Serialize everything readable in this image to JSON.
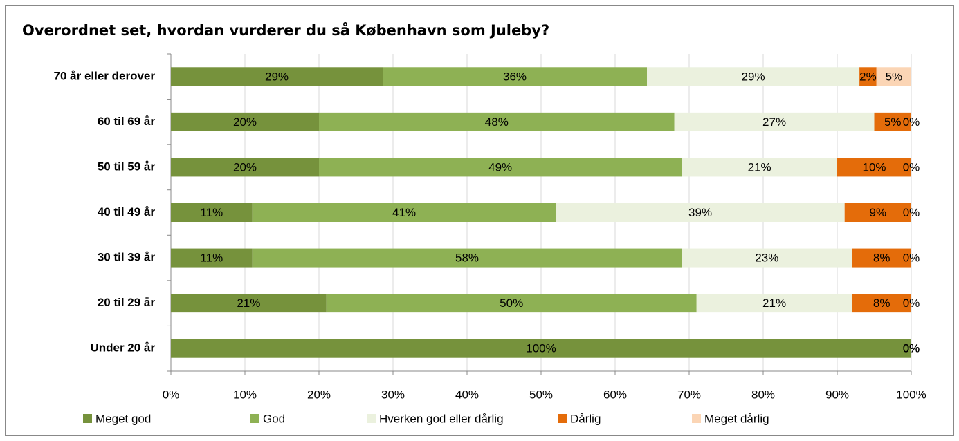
{
  "chart_data": {
    "type": "bar",
    "orientation": "horizontal",
    "stacked": true,
    "title": "Overordnet set, hvordan vurderer du så København som Juleby?",
    "categories": [
      "70 år eller derover",
      "60 til 69 år",
      "50 til 59 år",
      "40 til 49 år",
      "30 til 39 år",
      "20 til 29 år",
      "Under 20 år"
    ],
    "series": [
      {
        "name": "Meget god",
        "color": "#76923c",
        "values": [
          28.6,
          20,
          20,
          11,
          11,
          21,
          100
        ],
        "value_labels": [
          "29%",
          "20%",
          "20%",
          "11%",
          "11%",
          "21%",
          "100%"
        ]
      },
      {
        "name": "God",
        "color": "#8eb154",
        "values": [
          35.7,
          48,
          49,
          41,
          58,
          50,
          0
        ],
        "value_labels": [
          "36%",
          "48%",
          "49%",
          "41%",
          "58%",
          "50%",
          "0%"
        ]
      },
      {
        "name": "Hverken god eller dårlig",
        "color": "#ebf1de",
        "values": [
          28.7,
          27,
          21,
          39,
          23,
          21,
          0
        ],
        "value_labels": [
          "29%",
          "27%",
          "21%",
          "39%",
          "23%",
          "21%",
          "0%"
        ]
      },
      {
        "name": "Dårlig",
        "color": "#e46c0a",
        "values": [
          2.3,
          5,
          10,
          9,
          8,
          8,
          0
        ],
        "value_labels": [
          "2%",
          "5%",
          "10%",
          "9%",
          "8%",
          "8%",
          "0%"
        ]
      },
      {
        "name": "Meget dårlig",
        "color": "#fbd5b5",
        "values": [
          4.7,
          0,
          0,
          0,
          0,
          0,
          0
        ],
        "value_labels": [
          "5%",
          "0%",
          "0%",
          "0%",
          "0%",
          "0%",
          "0%"
        ]
      }
    ],
    "xlim": [
      0,
      100
    ],
    "xticks": [
      {
        "value": 0,
        "label": "0%"
      },
      {
        "value": 10,
        "label": "10%"
      },
      {
        "value": 20,
        "label": "20%"
      },
      {
        "value": 30,
        "label": "30%"
      },
      {
        "value": 40,
        "label": "40%"
      },
      {
        "value": 50,
        "label": "50%"
      },
      {
        "value": 60,
        "label": "60%"
      },
      {
        "value": 70,
        "label": "70%"
      },
      {
        "value": 80,
        "label": "80%"
      },
      {
        "value": 90,
        "label": "90%"
      },
      {
        "value": 100,
        "label": "100%"
      }
    ],
    "grid": true,
    "legend": "bottom"
  }
}
